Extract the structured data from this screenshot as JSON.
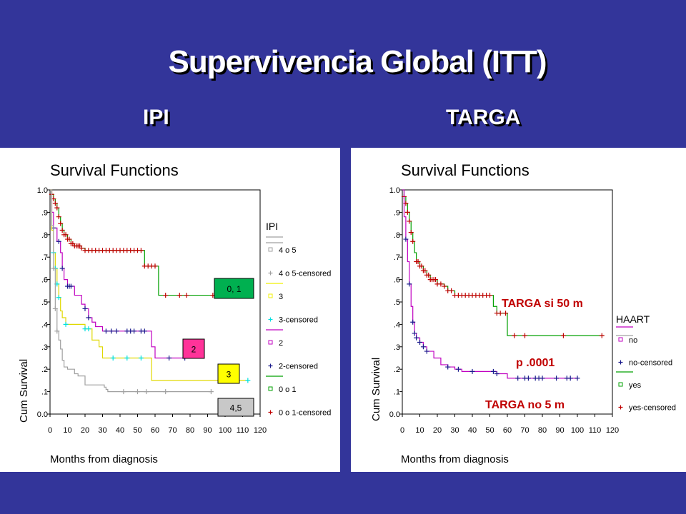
{
  "slide": {
    "title": "Supervivencia Global  (ITT)",
    "subtitle_left": "IPI",
    "subtitle_right": "TARGA",
    "background_color": "#33359a"
  },
  "chart_data": [
    {
      "type": "line",
      "title": "Survival Functions",
      "xlabel": "Months from diagnosis",
      "ylabel": "Cum Survival",
      "xlim": [
        0,
        120
      ],
      "ylim": [
        0,
        1
      ],
      "x_ticks": [
        "0",
        "10",
        "20",
        "30",
        "40",
        "50",
        "60",
        "70",
        "80",
        "90",
        "100",
        "110",
        "120"
      ],
      "y_ticks": [
        "0.0",
        ".1",
        ".2",
        ".3",
        ".4",
        ".5",
        ".6",
        ".7",
        ".8",
        ".9",
        "1.0"
      ],
      "legend_title": "IPI",
      "legend": [
        {
          "label": "4 o 5",
          "marker": "line",
          "color": "#a0a0a0"
        },
        {
          "label": "4 o 5-censored",
          "marker": "plus",
          "color": "#a0a0a0"
        },
        {
          "label": "3",
          "marker": "line",
          "color": "#f0f000"
        },
        {
          "label": "3-censored",
          "marker": "plus",
          "color": "#00e0e0"
        },
        {
          "label": "2",
          "marker": "line",
          "color": "#c000c0"
        },
        {
          "label": "2-censored",
          "marker": "plus",
          "color": "#1a1a8c"
        },
        {
          "label": "0 o 1",
          "marker": "line",
          "color": "#00a000"
        },
        {
          "label": "0 o 1-censored",
          "marker": "plus",
          "color": "#c00000"
        }
      ],
      "annotations": [
        {
          "text": "0, 1",
          "x": 98,
          "y": 0.55,
          "color": "#00b050"
        },
        {
          "text": "2",
          "x": 81,
          "y": 0.28,
          "color": "#ff3399"
        },
        {
          "text": "3",
          "x": 101,
          "y": 0.18,
          "color": "#ffff00"
        },
        {
          "text": "4,5",
          "x": 101,
          "y": 0.03,
          "color": "#c8c8c8"
        }
      ],
      "series": [
        {
          "name": "0 o 1",
          "color": "#00a000",
          "steps": [
            [
              0,
              1.0
            ],
            [
              1,
              0.98
            ],
            [
              2,
              0.96
            ],
            [
              3,
              0.94
            ],
            [
              4,
              0.92
            ],
            [
              5,
              0.88
            ],
            [
              6,
              0.85
            ],
            [
              7,
              0.82
            ],
            [
              8,
              0.8
            ],
            [
              10,
              0.78
            ],
            [
              12,
              0.76
            ],
            [
              14,
              0.75
            ],
            [
              18,
              0.74
            ],
            [
              20,
              0.73
            ],
            [
              54,
              0.73
            ],
            [
              54,
              0.66
            ],
            [
              62,
              0.66
            ],
            [
              62,
              0.53
            ],
            [
              98,
              0.53
            ]
          ],
          "censored_x": [
            1,
            2,
            3,
            4,
            5,
            6,
            7,
            8,
            9,
            10,
            11,
            12,
            13,
            14,
            15,
            16,
            17,
            18,
            20,
            22,
            24,
            26,
            28,
            30,
            32,
            34,
            36,
            38,
            40,
            42,
            44,
            46,
            48,
            50,
            52,
            54,
            56,
            58,
            60,
            66,
            74,
            78,
            93
          ]
        },
        {
          "name": "2",
          "color": "#c000c0",
          "steps": [
            [
              0,
              1.0
            ],
            [
              1,
              0.9
            ],
            [
              2,
              0.83
            ],
            [
              4,
              0.77
            ],
            [
              6,
              0.72
            ],
            [
              7,
              0.65
            ],
            [
              8,
              0.6
            ],
            [
              10,
              0.57
            ],
            [
              14,
              0.53
            ],
            [
              18,
              0.49
            ],
            [
              20,
              0.47
            ],
            [
              22,
              0.43
            ],
            [
              24,
              0.41
            ],
            [
              26,
              0.39
            ],
            [
              30,
              0.37
            ],
            [
              58,
              0.37
            ],
            [
              58,
              0.3
            ],
            [
              60,
              0.25
            ],
            [
              77,
              0.25
            ]
          ],
          "censored_x": [
            2,
            5,
            7,
            10,
            11,
            12,
            20,
            22,
            32,
            35,
            38,
            44,
            46,
            48,
            52,
            54,
            68,
            77
          ]
        },
        {
          "name": "3",
          "color": "#e0d800",
          "steps": [
            [
              0,
              1.0
            ],
            [
              1,
              0.82
            ],
            [
              2,
              0.72
            ],
            [
              3,
              0.65
            ],
            [
              4,
              0.58
            ],
            [
              5,
              0.52
            ],
            [
              6,
              0.46
            ],
            [
              7,
              0.43
            ],
            [
              9,
              0.4
            ],
            [
              20,
              0.38
            ],
            [
              24,
              0.33
            ],
            [
              28,
              0.3
            ],
            [
              30,
              0.25
            ],
            [
              58,
              0.25
            ],
            [
              58,
              0.15
            ],
            [
              113,
              0.15
            ]
          ],
          "censored_x": [
            2,
            3,
            4,
            5,
            9,
            20,
            22,
            36,
            44,
            52,
            113
          ]
        },
        {
          "name": "4 o 5",
          "color": "#a0a0a0",
          "steps": [
            [
              0,
              1.0
            ],
            [
              1,
              0.84
            ],
            [
              2,
              0.65
            ],
            [
              3,
              0.47
            ],
            [
              4,
              0.37
            ],
            [
              5,
              0.33
            ],
            [
              6,
              0.29
            ],
            [
              7,
              0.24
            ],
            [
              8,
              0.21
            ],
            [
              10,
              0.2
            ],
            [
              14,
              0.18
            ],
            [
              16,
              0.17
            ],
            [
              20,
              0.13
            ],
            [
              30,
              0.13
            ],
            [
              31,
              0.12
            ],
            [
              32,
              0.11
            ],
            [
              33,
              0.1
            ],
            [
              92,
              0.1
            ]
          ],
          "censored_x": [
            2,
            3,
            4,
            42,
            50,
            55,
            66,
            92
          ]
        }
      ]
    },
    {
      "type": "line",
      "title": "Survival Functions",
      "xlabel": "Months from diagnosis",
      "ylabel": "Cum Survival",
      "xlim": [
        0,
        120
      ],
      "ylim": [
        0,
        1
      ],
      "x_ticks": [
        "0",
        "10",
        "20",
        "30",
        "40",
        "50",
        "60",
        "70",
        "80",
        "90",
        "100",
        "110",
        "120"
      ],
      "y_ticks": [
        "0.0",
        ".1",
        ".2",
        ".3",
        ".4",
        ".5",
        ".6",
        ".7",
        ".8",
        ".9",
        "1.0"
      ],
      "legend_title": "HAART",
      "legend": [
        {
          "label": "no",
          "marker": "line",
          "color": "#c000c0"
        },
        {
          "label": "no-censored",
          "marker": "plus",
          "color": "#1a1a8c"
        },
        {
          "label": "yes",
          "marker": "line",
          "color": "#00a000"
        },
        {
          "label": "yes-censored",
          "marker": "plus",
          "color": "#c00000"
        }
      ],
      "annotations": [
        {
          "text": "TARGA si  50 m",
          "color": "#c00000"
        },
        {
          "text": "p .0001",
          "color": "#c00000"
        },
        {
          "text": "TARGA no 5 m",
          "color": "#c00000"
        }
      ],
      "series": [
        {
          "name": "yes",
          "color": "#00a000",
          "steps": [
            [
              0,
              1.0
            ],
            [
              1,
              0.97
            ],
            [
              2,
              0.94
            ],
            [
              3,
              0.9
            ],
            [
              4,
              0.86
            ],
            [
              5,
              0.81
            ],
            [
              6,
              0.77
            ],
            [
              7,
              0.72
            ],
            [
              8,
              0.68
            ],
            [
              10,
              0.66
            ],
            [
              12,
              0.64
            ],
            [
              14,
              0.62
            ],
            [
              16,
              0.6
            ],
            [
              20,
              0.58
            ],
            [
              24,
              0.57
            ],
            [
              26,
              0.55
            ],
            [
              30,
              0.53
            ],
            [
              50,
              0.53
            ],
            [
              52,
              0.48
            ],
            [
              54,
              0.45
            ],
            [
              58,
              0.45
            ],
            [
              60,
              0.35
            ],
            [
              115,
              0.35
            ]
          ],
          "censored_x": [
            1,
            2,
            3,
            4,
            5,
            6,
            8,
            9,
            10,
            11,
            12,
            13,
            14,
            15,
            16,
            17,
            18,
            19,
            20,
            22,
            24,
            26,
            28,
            30,
            32,
            34,
            36,
            38,
            40,
            42,
            44,
            46,
            48,
            50,
            54,
            56,
            59,
            64,
            70,
            92,
            114
          ]
        },
        {
          "name": "no",
          "color": "#c000c0",
          "steps": [
            [
              0,
              1.0
            ],
            [
              1,
              0.88
            ],
            [
              2,
              0.78
            ],
            [
              3,
              0.68
            ],
            [
              4,
              0.58
            ],
            [
              5,
              0.48
            ],
            [
              6,
              0.41
            ],
            [
              7,
              0.36
            ],
            [
              8,
              0.34
            ],
            [
              10,
              0.32
            ],
            [
              12,
              0.3
            ],
            [
              14,
              0.28
            ],
            [
              18,
              0.25
            ],
            [
              22,
              0.22
            ],
            [
              26,
              0.21
            ],
            [
              30,
              0.2
            ],
            [
              34,
              0.19
            ],
            [
              50,
              0.19
            ],
            [
              54,
              0.18
            ],
            [
              60,
              0.16
            ],
            [
              100,
              0.16
            ]
          ],
          "censored_x": [
            2,
            4,
            6,
            7,
            8,
            10,
            12,
            14,
            26,
            32,
            40,
            52,
            54,
            66,
            70,
            72,
            76,
            78,
            80,
            88,
            94,
            96,
            100
          ]
        }
      ]
    }
  ]
}
